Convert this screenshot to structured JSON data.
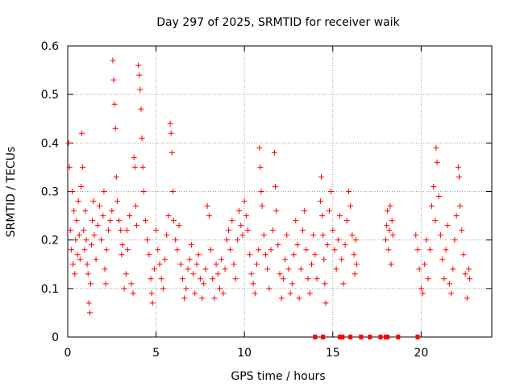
{
  "chart_data": {
    "type": "scatter",
    "title": "Day 297 of 2025, SRMTID for receiver waik",
    "xlabel": "GPS time / hours",
    "ylabel": "SRMTID / TECUs",
    "xlim": [
      0,
      24
    ],
    "ylim": [
      0,
      0.6
    ],
    "xticks": [
      0,
      5,
      10,
      15,
      20
    ],
    "xtick_labels": [
      "0",
      "5",
      "10",
      "15",
      "20"
    ],
    "yticks": [
      0,
      0.1,
      0.2,
      0.3,
      0.4,
      0.5,
      0.6
    ],
    "ytick_labels": [
      "0",
      "0.1",
      "0.2",
      "0.3",
      "0.4",
      "0.5",
      "0.6"
    ],
    "grid": true,
    "marker": "+",
    "color": "#ff0000",
    "series": [
      {
        "name": "SRMTID",
        "points": [
          [
            0.05,
            0.4
          ],
          [
            0.1,
            0.35
          ],
          [
            0.15,
            0.22
          ],
          [
            0.2,
            0.18
          ],
          [
            0.25,
            0.3
          ],
          [
            0.3,
            0.15
          ],
          [
            0.35,
            0.26
          ],
          [
            0.4,
            0.13
          ],
          [
            0.45,
            0.2
          ],
          [
            0.5,
            0.24
          ],
          [
            0.55,
            0.17
          ],
          [
            0.6,
            0.28
          ],
          [
            0.65,
            0.21
          ],
          [
            0.7,
            0.16
          ],
          [
            0.75,
            0.31
          ],
          [
            0.8,
            0.42
          ],
          [
            0.85,
            0.35
          ],
          [
            0.9,
            0.22
          ],
          [
            0.95,
            0.18
          ],
          [
            1.0,
            0.26
          ],
          [
            1.05,
            0.2
          ],
          [
            1.1,
            0.15
          ],
          [
            1.15,
            0.13
          ],
          [
            1.2,
            0.07
          ],
          [
            1.25,
            0.05
          ],
          [
            1.3,
            0.11
          ],
          [
            1.35,
            0.19
          ],
          [
            1.4,
            0.24
          ],
          [
            1.45,
            0.28
          ],
          [
            1.5,
            0.21
          ],
          [
            1.6,
            0.16
          ],
          [
            1.7,
            0.23
          ],
          [
            1.8,
            0.27
          ],
          [
            1.9,
            0.2
          ],
          [
            2.0,
            0.25
          ],
          [
            2.05,
            0.3
          ],
          [
            2.1,
            0.14
          ],
          [
            2.15,
            0.11
          ],
          [
            2.2,
            0.18
          ],
          [
            2.3,
            0.22
          ],
          [
            2.4,
            0.24
          ],
          [
            2.5,
            0.26
          ],
          [
            2.55,
            0.57
          ],
          [
            2.6,
            0.53
          ],
          [
            2.65,
            0.48
          ],
          [
            2.7,
            0.43
          ],
          [
            2.75,
            0.33
          ],
          [
            2.8,
            0.28
          ],
          [
            2.9,
            0.24
          ],
          [
            3.0,
            0.22
          ],
          [
            3.05,
            0.17
          ],
          [
            3.1,
            0.19
          ],
          [
            3.2,
            0.1
          ],
          [
            3.3,
            0.13
          ],
          [
            3.35,
            0.22
          ],
          [
            3.4,
            0.18
          ],
          [
            3.5,
            0.25
          ],
          [
            3.6,
            0.11
          ],
          [
            3.7,
            0.09
          ],
          [
            3.75,
            0.37
          ],
          [
            3.8,
            0.35
          ],
          [
            3.85,
            0.27
          ],
          [
            3.9,
            0.23
          ],
          [
            4.0,
            0.56
          ],
          [
            4.05,
            0.54
          ],
          [
            4.1,
            0.51
          ],
          [
            4.15,
            0.47
          ],
          [
            4.2,
            0.41
          ],
          [
            4.25,
            0.35
          ],
          [
            4.3,
            0.3
          ],
          [
            4.4,
            0.24
          ],
          [
            4.5,
            0.2
          ],
          [
            4.6,
            0.17
          ],
          [
            4.7,
            0.12
          ],
          [
            4.75,
            0.09
          ],
          [
            4.8,
            0.07
          ],
          [
            4.9,
            0.14
          ],
          [
            5.0,
            0.22
          ],
          [
            5.1,
            0.18
          ],
          [
            5.2,
            0.15
          ],
          [
            5.3,
            0.12
          ],
          [
            5.4,
            0.1
          ],
          [
            5.5,
            0.16
          ],
          [
            5.6,
            0.21
          ],
          [
            5.7,
            0.25
          ],
          [
            5.8,
            0.44
          ],
          [
            5.85,
            0.42
          ],
          [
            5.9,
            0.38
          ],
          [
            5.95,
            0.3
          ],
          [
            6.0,
            0.24
          ],
          [
            6.1,
            0.2
          ],
          [
            6.2,
            0.18
          ],
          [
            6.3,
            0.23
          ],
          [
            6.4,
            0.15
          ],
          [
            6.5,
            0.12
          ],
          [
            6.6,
            0.08
          ],
          [
            6.7,
            0.1
          ],
          [
            6.8,
            0.14
          ],
          [
            6.9,
            0.16
          ],
          [
            7.0,
            0.19
          ],
          [
            7.1,
            0.13
          ],
          [
            7.2,
            0.09
          ],
          [
            7.3,
            0.15
          ],
          [
            7.4,
            0.17
          ],
          [
            7.5,
            0.12
          ],
          [
            7.6,
            0.08
          ],
          [
            7.7,
            0.11
          ],
          [
            7.8,
            0.14
          ],
          [
            7.9,
            0.27
          ],
          [
            8.0,
            0.25
          ],
          [
            8.1,
            0.18
          ],
          [
            8.2,
            0.12
          ],
          [
            8.3,
            0.08
          ],
          [
            8.4,
            0.15
          ],
          [
            8.5,
            0.13
          ],
          [
            8.6,
            0.1
          ],
          [
            8.7,
            0.16
          ],
          [
            8.8,
            0.09
          ],
          [
            8.9,
            0.14
          ],
          [
            9.0,
            0.2
          ],
          [
            9.1,
            0.22
          ],
          [
            9.2,
            0.18
          ],
          [
            9.3,
            0.24
          ],
          [
            9.4,
            0.15
          ],
          [
            9.5,
            0.12
          ],
          [
            9.6,
            0.2
          ],
          [
            9.7,
            0.26
          ],
          [
            9.8,
            0.23
          ],
          [
            9.9,
            0.21
          ],
          [
            10.0,
            0.28
          ],
          [
            10.1,
            0.25
          ],
          [
            10.2,
            0.22
          ],
          [
            10.3,
            0.17
          ],
          [
            10.4,
            0.13
          ],
          [
            10.5,
            0.11
          ],
          [
            10.6,
            0.09
          ],
          [
            10.7,
            0.15
          ],
          [
            10.8,
            0.18
          ],
          [
            10.85,
            0.39
          ],
          [
            10.9,
            0.35
          ],
          [
            10.95,
            0.3
          ],
          [
            11.0,
            0.27
          ],
          [
            11.1,
            0.21
          ],
          [
            11.2,
            0.17
          ],
          [
            11.3,
            0.14
          ],
          [
            11.4,
            0.1
          ],
          [
            11.5,
            0.18
          ],
          [
            11.6,
            0.22
          ],
          [
            11.7,
            0.38
          ],
          [
            11.75,
            0.31
          ],
          [
            11.8,
            0.26
          ],
          [
            11.9,
            0.19
          ],
          [
            12.0,
            0.13
          ],
          [
            12.1,
            0.08
          ],
          [
            12.2,
            0.12
          ],
          [
            12.3,
            0.16
          ],
          [
            12.4,
            0.21
          ],
          [
            12.5,
            0.14
          ],
          [
            12.6,
            0.09
          ],
          [
            12.7,
            0.11
          ],
          [
            12.8,
            0.17
          ],
          [
            12.9,
            0.24
          ],
          [
            13.0,
            0.19
          ],
          [
            13.1,
            0.08
          ],
          [
            13.2,
            0.14
          ],
          [
            13.3,
            0.22
          ],
          [
            13.4,
            0.26
          ],
          [
            13.5,
            0.18
          ],
          [
            13.6,
            0.12
          ],
          [
            13.7,
            0.09
          ],
          [
            13.8,
            0.15
          ],
          [
            13.9,
            0.21
          ],
          [
            14.0,
            0.17
          ],
          [
            14.1,
            0.12
          ],
          [
            14.3,
            0.28
          ],
          [
            14.35,
            0.33
          ],
          [
            14.4,
            0.25
          ],
          [
            14.45,
            0.21
          ],
          [
            14.5,
            0.16
          ],
          [
            14.55,
            0.11
          ],
          [
            14.6,
            0.07
          ],
          [
            14.7,
            0.19
          ],
          [
            14.8,
            0.26
          ],
          [
            14.9,
            0.3
          ],
          [
            15.0,
            0.22
          ],
          [
            15.1,
            0.18
          ],
          [
            15.2,
            0.14
          ],
          [
            15.3,
            0.2
          ],
          [
            15.4,
            0.25
          ],
          [
            15.5,
            0.16
          ],
          [
            15.6,
            0.11
          ],
          [
            15.7,
            0.19
          ],
          [
            15.8,
            0.24
          ],
          [
            15.9,
            0.3
          ],
          [
            16.0,
            0.27
          ],
          [
            16.1,
            0.21
          ],
          [
            16.2,
            0.17
          ],
          [
            16.25,
            0.13
          ],
          [
            16.3,
            0.2
          ],
          [
            16.35,
            0.15
          ],
          [
            18.0,
            0.2
          ],
          [
            18.05,
            0.23
          ],
          [
            18.1,
            0.26
          ],
          [
            18.15,
            0.18
          ],
          [
            18.2,
            0.22
          ],
          [
            18.25,
            0.27
          ],
          [
            18.3,
            0.15
          ],
          [
            18.35,
            0.24
          ],
          [
            18.4,
            0.21
          ],
          [
            19.7,
            0.21
          ],
          [
            19.8,
            0.18
          ],
          [
            19.9,
            0.14
          ],
          [
            20.0,
            0.1
          ],
          [
            20.1,
            0.09
          ],
          [
            20.2,
            0.15
          ],
          [
            20.3,
            0.2
          ],
          [
            20.4,
            0.12
          ],
          [
            20.5,
            0.18
          ],
          [
            20.6,
            0.27
          ],
          [
            20.7,
            0.31
          ],
          [
            20.8,
            0.24
          ],
          [
            20.85,
            0.39
          ],
          [
            20.9,
            0.36
          ],
          [
            21.0,
            0.29
          ],
          [
            21.1,
            0.21
          ],
          [
            21.2,
            0.16
          ],
          [
            21.3,
            0.12
          ],
          [
            21.4,
            0.18
          ],
          [
            21.5,
            0.23
          ],
          [
            21.6,
            0.11
          ],
          [
            21.7,
            0.09
          ],
          [
            21.8,
            0.14
          ],
          [
            21.9,
            0.2
          ],
          [
            22.0,
            0.25
          ],
          [
            22.1,
            0.35
          ],
          [
            22.15,
            0.33
          ],
          [
            22.2,
            0.27
          ],
          [
            22.3,
            0.22
          ],
          [
            22.4,
            0.17
          ],
          [
            22.5,
            0.13
          ],
          [
            22.6,
            0.08
          ],
          [
            22.7,
            0.14
          ],
          [
            22.75,
            0.12
          ]
        ]
      }
    ],
    "zero_markers_x": [
      14.0,
      14.45,
      15.4,
      15.55,
      16.0,
      16.6,
      17.1,
      17.7,
      18.0,
      18.1,
      18.7,
      19.8
    ]
  }
}
